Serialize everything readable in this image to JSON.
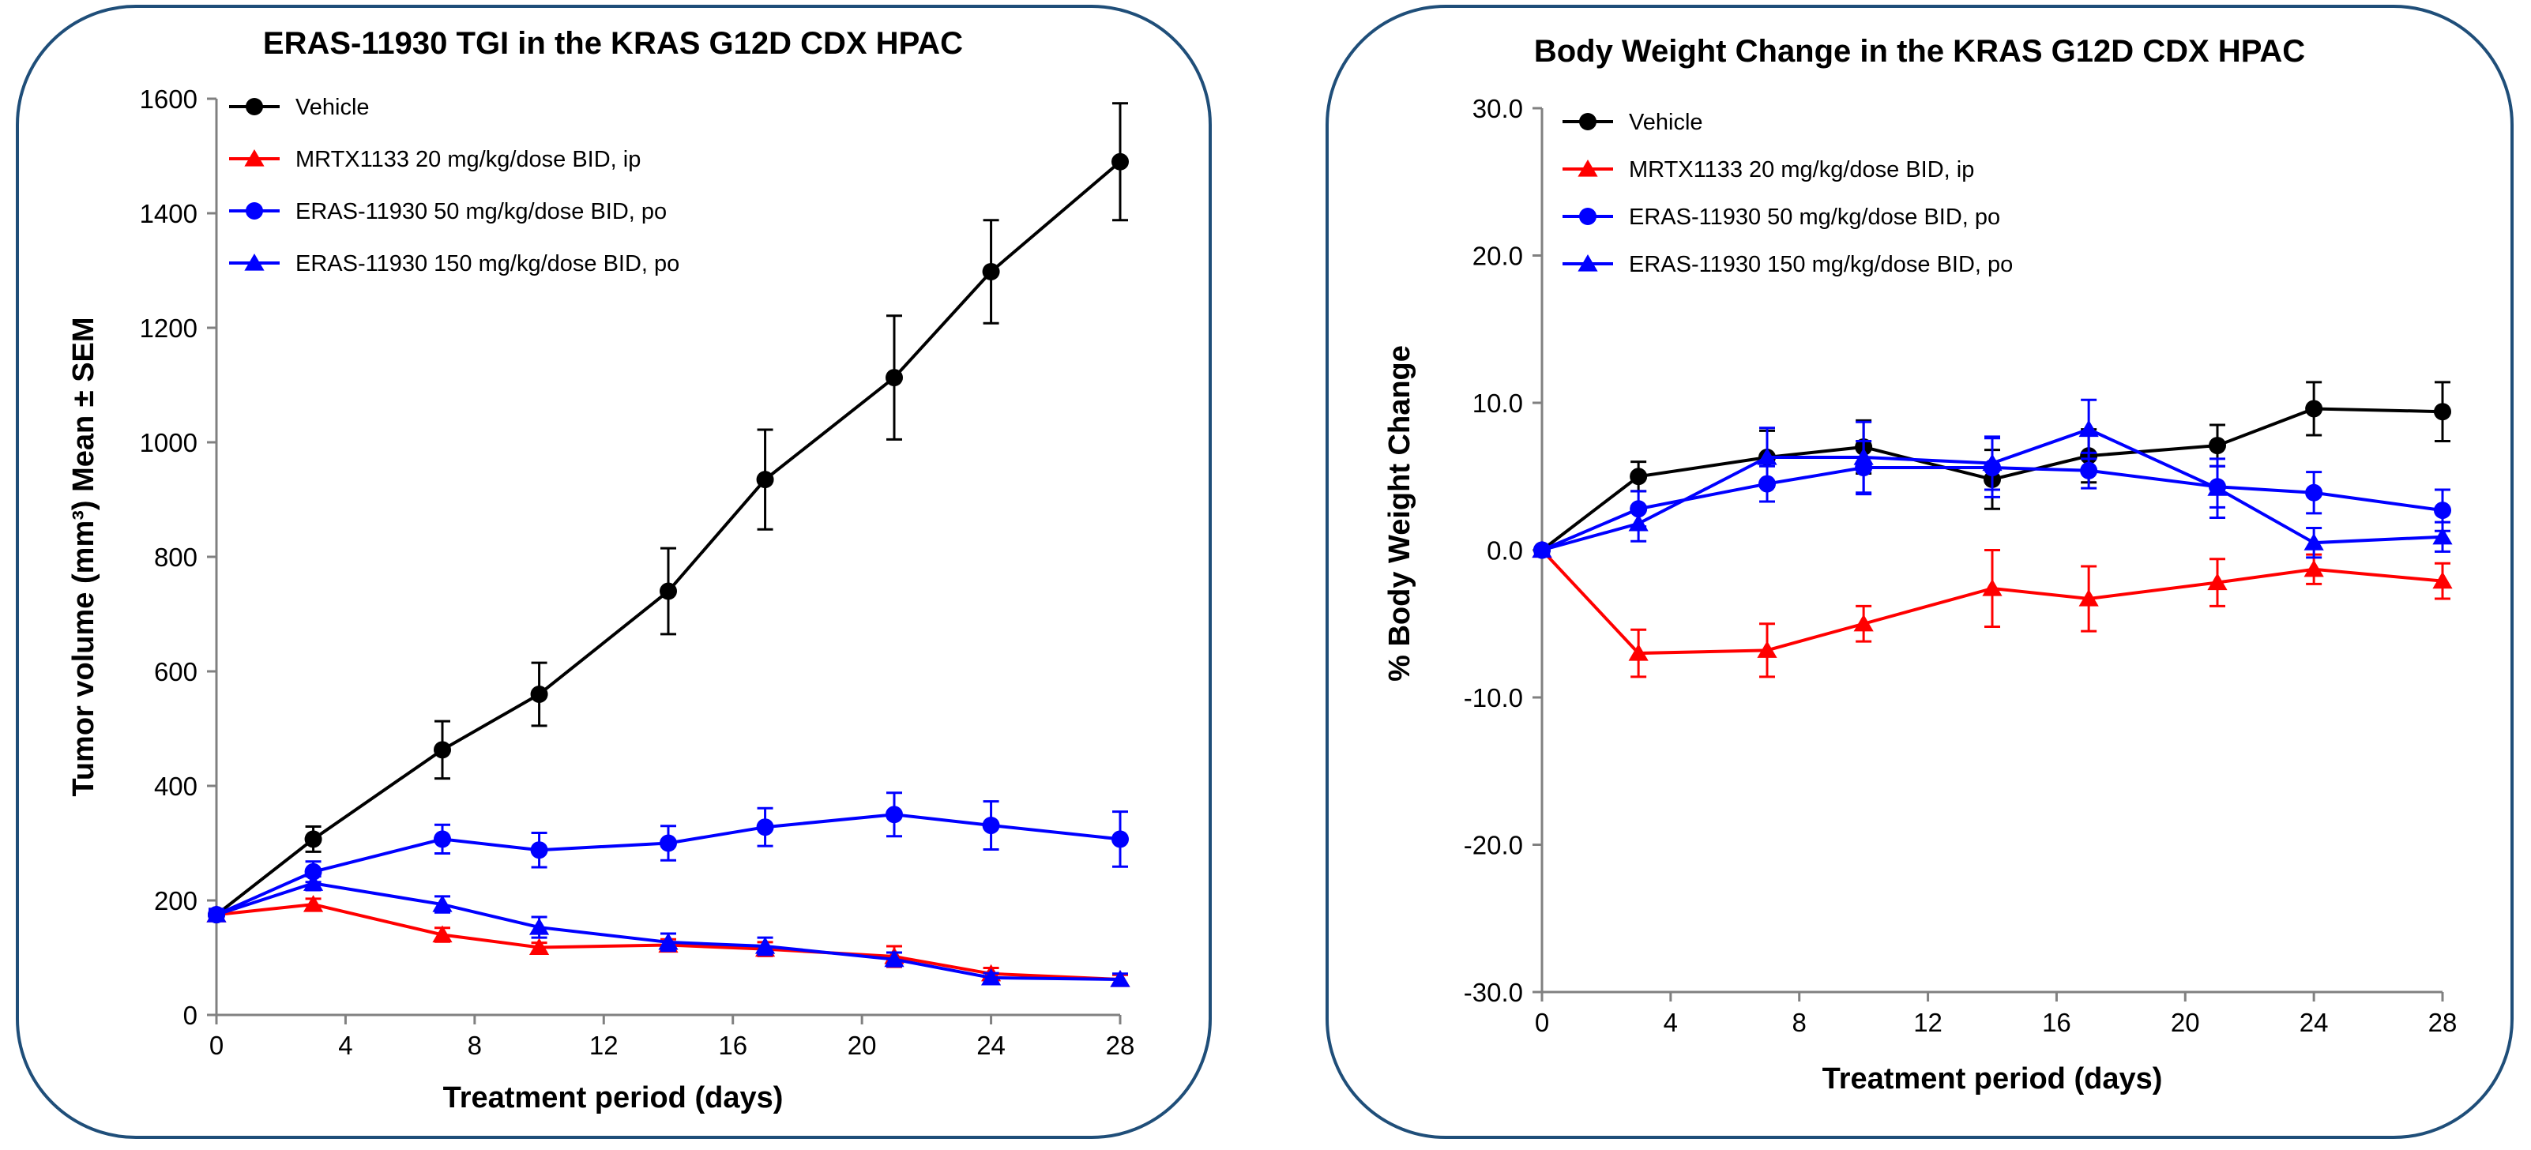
{
  "chart_data": [
    {
      "type": "line",
      "title": "ERAS-11930 TGI in the KRAS G12D CDX HPAC",
      "xlabel": "Treatment period (days)",
      "ylabel": "Tumor volume (mm³) Mean ± SEM",
      "xlim": [
        0,
        28
      ],
      "ylim": [
        0,
        1600
      ],
      "xticks": [
        0,
        4,
        8,
        12,
        16,
        20,
        24,
        28
      ],
      "yticks": [
        0,
        200,
        400,
        600,
        800,
        1000,
        1200,
        1400,
        1600
      ],
      "ytick_labels": [
        "0",
        "200",
        "400",
        "600",
        "800",
        "1000",
        "1200",
        "1400",
        "1600"
      ],
      "legend_position": "top-left",
      "grid": false,
      "x": [
        0,
        3,
        7,
        10,
        14,
        17,
        21,
        24,
        28
      ],
      "series": [
        {
          "name": "Vehicle",
          "color": "#000000",
          "marker": "circle",
          "values": [
            175,
            307,
            463,
            560,
            740,
            935,
            1113,
            1298,
            1490
          ],
          "errors": [
            10,
            22,
            50,
            55,
            75,
            87,
            108,
            90,
            102
          ]
        },
        {
          "name": "MRTX1133 20 mg/kg/dose BID, ip",
          "color": "#ff0000",
          "marker": "triangle",
          "values": [
            175,
            193,
            140,
            118,
            122,
            115,
            102,
            72,
            62
          ],
          "errors": [
            5,
            10,
            12,
            8,
            10,
            12,
            18,
            10,
            8
          ]
        },
        {
          "name": "ERAS-11930 50 mg/kg/dose BID, po",
          "color": "#0000ff",
          "marker": "circle",
          "values": [
            175,
            250,
            307,
            288,
            300,
            328,
            350,
            331,
            307
          ],
          "errors": [
            10,
            18,
            25,
            30,
            30,
            33,
            38,
            42,
            48
          ]
        },
        {
          "name": "ERAS-11930 150 mg/kg/dose BID, po",
          "color": "#0000ff",
          "marker": "triangle",
          "values": [
            175,
            230,
            193,
            153,
            127,
            120,
            97,
            65,
            62
          ],
          "errors": [
            8,
            12,
            14,
            18,
            15,
            15,
            12,
            8,
            10
          ]
        }
      ]
    },
    {
      "type": "line",
      "title": "Body Weight Change in the KRAS G12D CDX HPAC",
      "xlabel": "Treatment period (days)",
      "ylabel": "% Body Weight Change",
      "xlim": [
        0,
        28
      ],
      "ylim": [
        -30,
        30
      ],
      "xticks": [
        0,
        4,
        8,
        12,
        16,
        20,
        24,
        28
      ],
      "yticks": [
        -30,
        -20,
        -10,
        0,
        10,
        20,
        30
      ],
      "ytick_labels": [
        "-30.0",
        "-20.0",
        "-10.0",
        "0.0",
        "10.0",
        "20.0",
        "30.0"
      ],
      "legend_position": "top-left",
      "grid": false,
      "x": [
        0,
        3,
        7,
        10,
        14,
        17,
        21,
        24,
        28
      ],
      "series": [
        {
          "name": "Vehicle",
          "color": "#000000",
          "marker": "circle",
          "values": [
            0,
            5.0,
            6.3,
            7.0,
            4.8,
            6.4,
            7.1,
            9.6,
            9.4
          ],
          "errors": [
            0,
            1.0,
            1.8,
            1.8,
            2.0,
            1.8,
            1.4,
            1.8,
            2.0
          ]
        },
        {
          "name": "MRTX1133 20 mg/kg/dose BID, ip",
          "color": "#ff0000",
          "marker": "triangle",
          "values": [
            0,
            -7.0,
            -6.8,
            -5.0,
            -2.6,
            -3.3,
            -2.2,
            -1.3,
            -2.1
          ],
          "errors": [
            0,
            1.6,
            1.8,
            1.2,
            2.6,
            2.2,
            1.6,
            1.0,
            1.2
          ]
        },
        {
          "name": "ERAS-11930 50 mg/kg/dose BID, po",
          "color": "#0000ff",
          "marker": "circle",
          "values": [
            0,
            2.8,
            4.5,
            5.6,
            5.6,
            5.4,
            4.3,
            3.9,
            2.7
          ],
          "errors": [
            0,
            1.2,
            1.2,
            1.8,
            2.0,
            1.2,
            1.4,
            1.4,
            1.4
          ]
        },
        {
          "name": "ERAS-11930 150 mg/kg/dose BID, po",
          "color": "#0000ff",
          "marker": "triangle",
          "values": [
            0,
            1.8,
            6.3,
            6.3,
            5.9,
            8.2,
            4.2,
            0.5,
            0.9
          ],
          "errors": [
            0,
            1.2,
            2.0,
            2.4,
            1.8,
            2.0,
            2.0,
            1.0,
            1.0
          ]
        }
      ]
    }
  ]
}
